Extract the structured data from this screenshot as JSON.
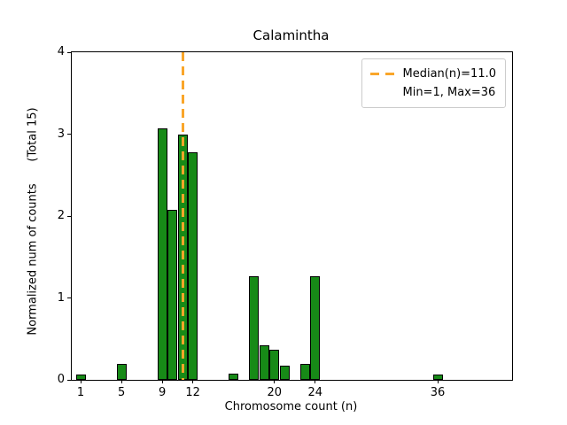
{
  "chart_data": {
    "type": "bar",
    "title": "Calamintha",
    "xlabel": "Chromosome count (n)",
    "ylabel": "Normalized num of counts      (Total 15)",
    "total_counts": 15,
    "x": [
      1,
      5,
      9,
      10,
      11,
      12,
      16,
      18,
      19,
      20,
      21,
      23,
      24,
      36
    ],
    "values": [
      0.07,
      0.19,
      3.07,
      2.08,
      3.0,
      2.78,
      0.08,
      1.27,
      0.42,
      0.37,
      0.17,
      0.19,
      1.27,
      0.07
    ],
    "x_ticks": [
      1,
      5,
      9,
      12,
      20,
      24,
      36
    ],
    "y_ticks": [
      0,
      1,
      2,
      3,
      4
    ],
    "xlim": [
      0.13,
      43.3
    ],
    "ylim": [
      0,
      4
    ],
    "grid": false,
    "bar_color": "#178a17",
    "bar_edge_color": "#000000",
    "median_line": {
      "x": 11.0,
      "color": "#f9a62a",
      "style": "dashed"
    },
    "stats": {
      "median": 11.0,
      "min": 1,
      "max": 36
    },
    "legend": {
      "position": "upper right",
      "items": [
        {
          "label": "Median(n)=11.0",
          "swatch": "orange-dashed-line"
        },
        {
          "label": "Min=1, Max=36",
          "swatch": null
        }
      ]
    }
  }
}
